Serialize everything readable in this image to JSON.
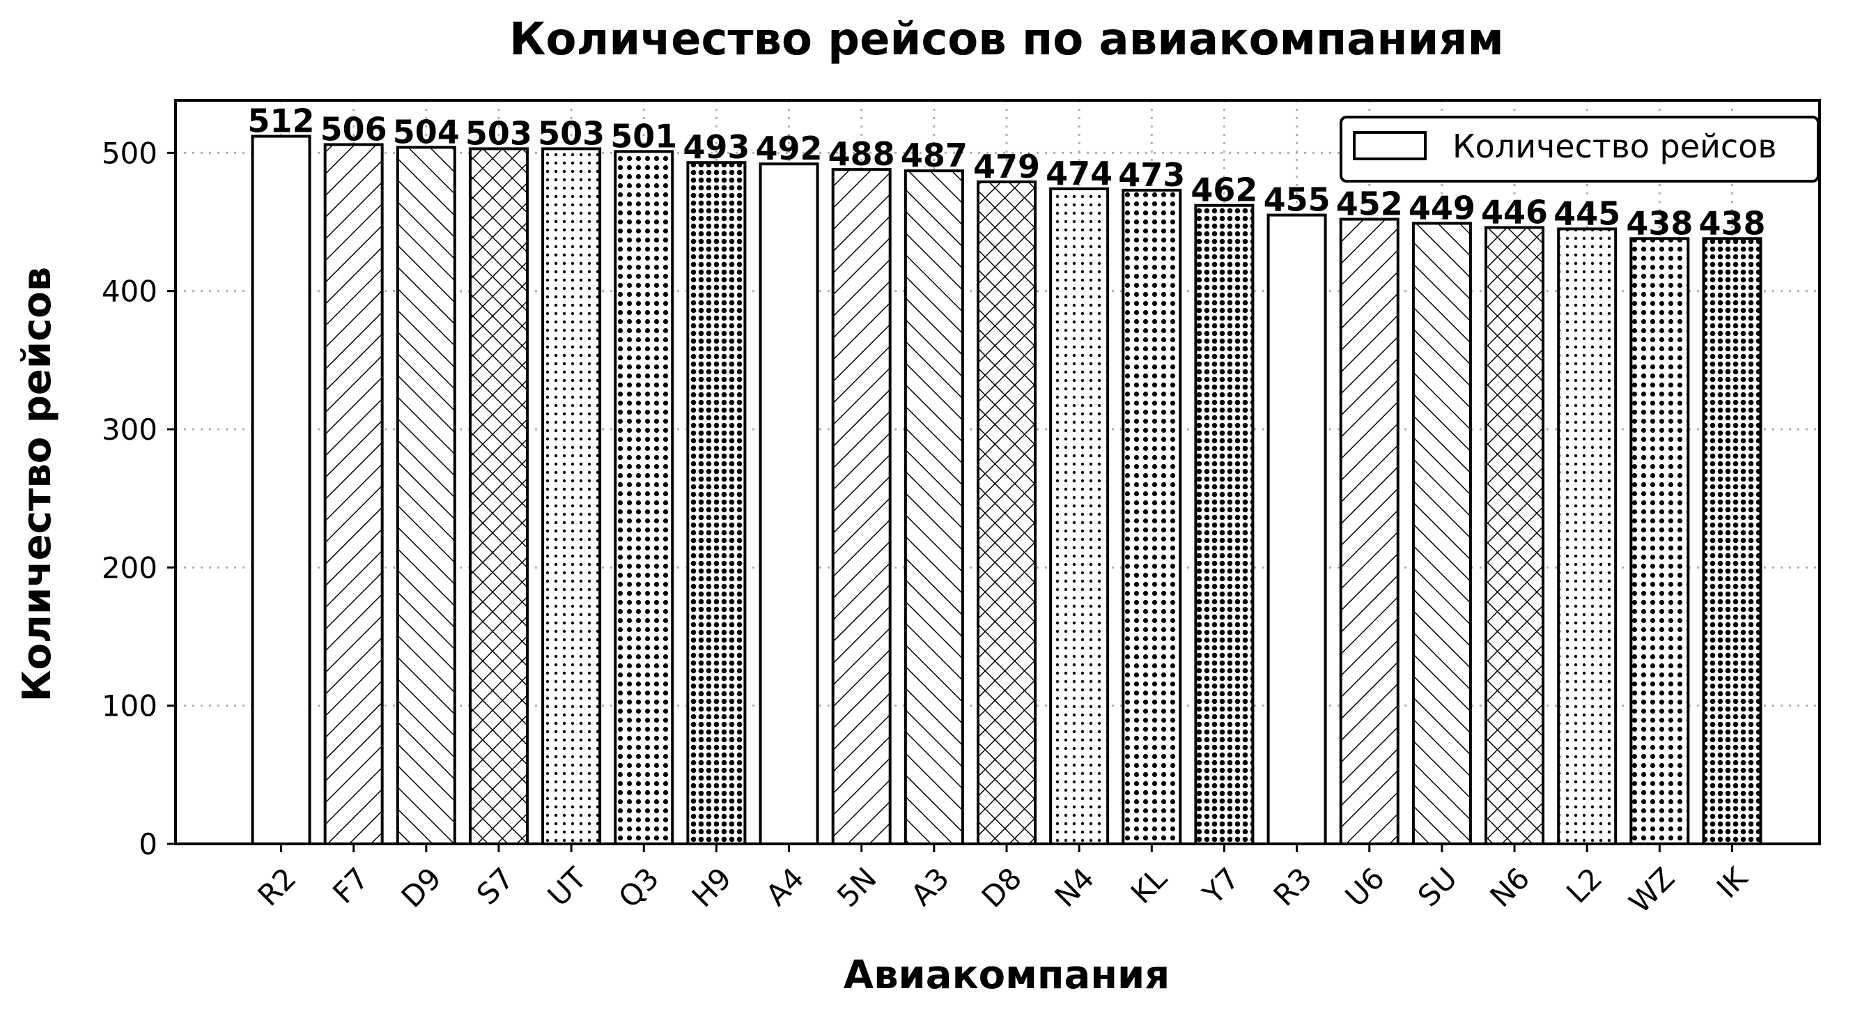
{
  "chart_data": {
    "type": "bar",
    "title": "Количество рейсов по авиакомпаниям",
    "xlabel": "Авиакомпания",
    "ylabel": "Количество рейсов",
    "legend": {
      "label": "Количество рейсов",
      "position": "top-right"
    },
    "categories": [
      "R2",
      "F7",
      "D9",
      "S7",
      "UT",
      "Q3",
      "H9",
      "A4",
      "5N",
      "A3",
      "D8",
      "N4",
      "KL",
      "Y7",
      "R3",
      "U6",
      "SU",
      "N6",
      "L2",
      "WZ",
      "IK"
    ],
    "series": [
      {
        "name": "Количество рейсов",
        "values": [
          512,
          506,
          504,
          503,
          503,
          501,
          493,
          492,
          488,
          487,
          479,
          474,
          473,
          462,
          455,
          452,
          449,
          446,
          445,
          438,
          438
        ]
      }
    ],
    "hatches": [
      "none",
      "slash",
      "backslash",
      "cross",
      "dots-small",
      "dots-medium",
      "dots-dense"
    ],
    "ylim": [
      0,
      538
    ],
    "yticks": [
      0,
      100,
      200,
      300,
      400,
      500
    ],
    "grid": true,
    "colors": {
      "bar_fill": "#ffffff",
      "bar_edge": "#000000",
      "grid": "#b0b0b0"
    }
  }
}
